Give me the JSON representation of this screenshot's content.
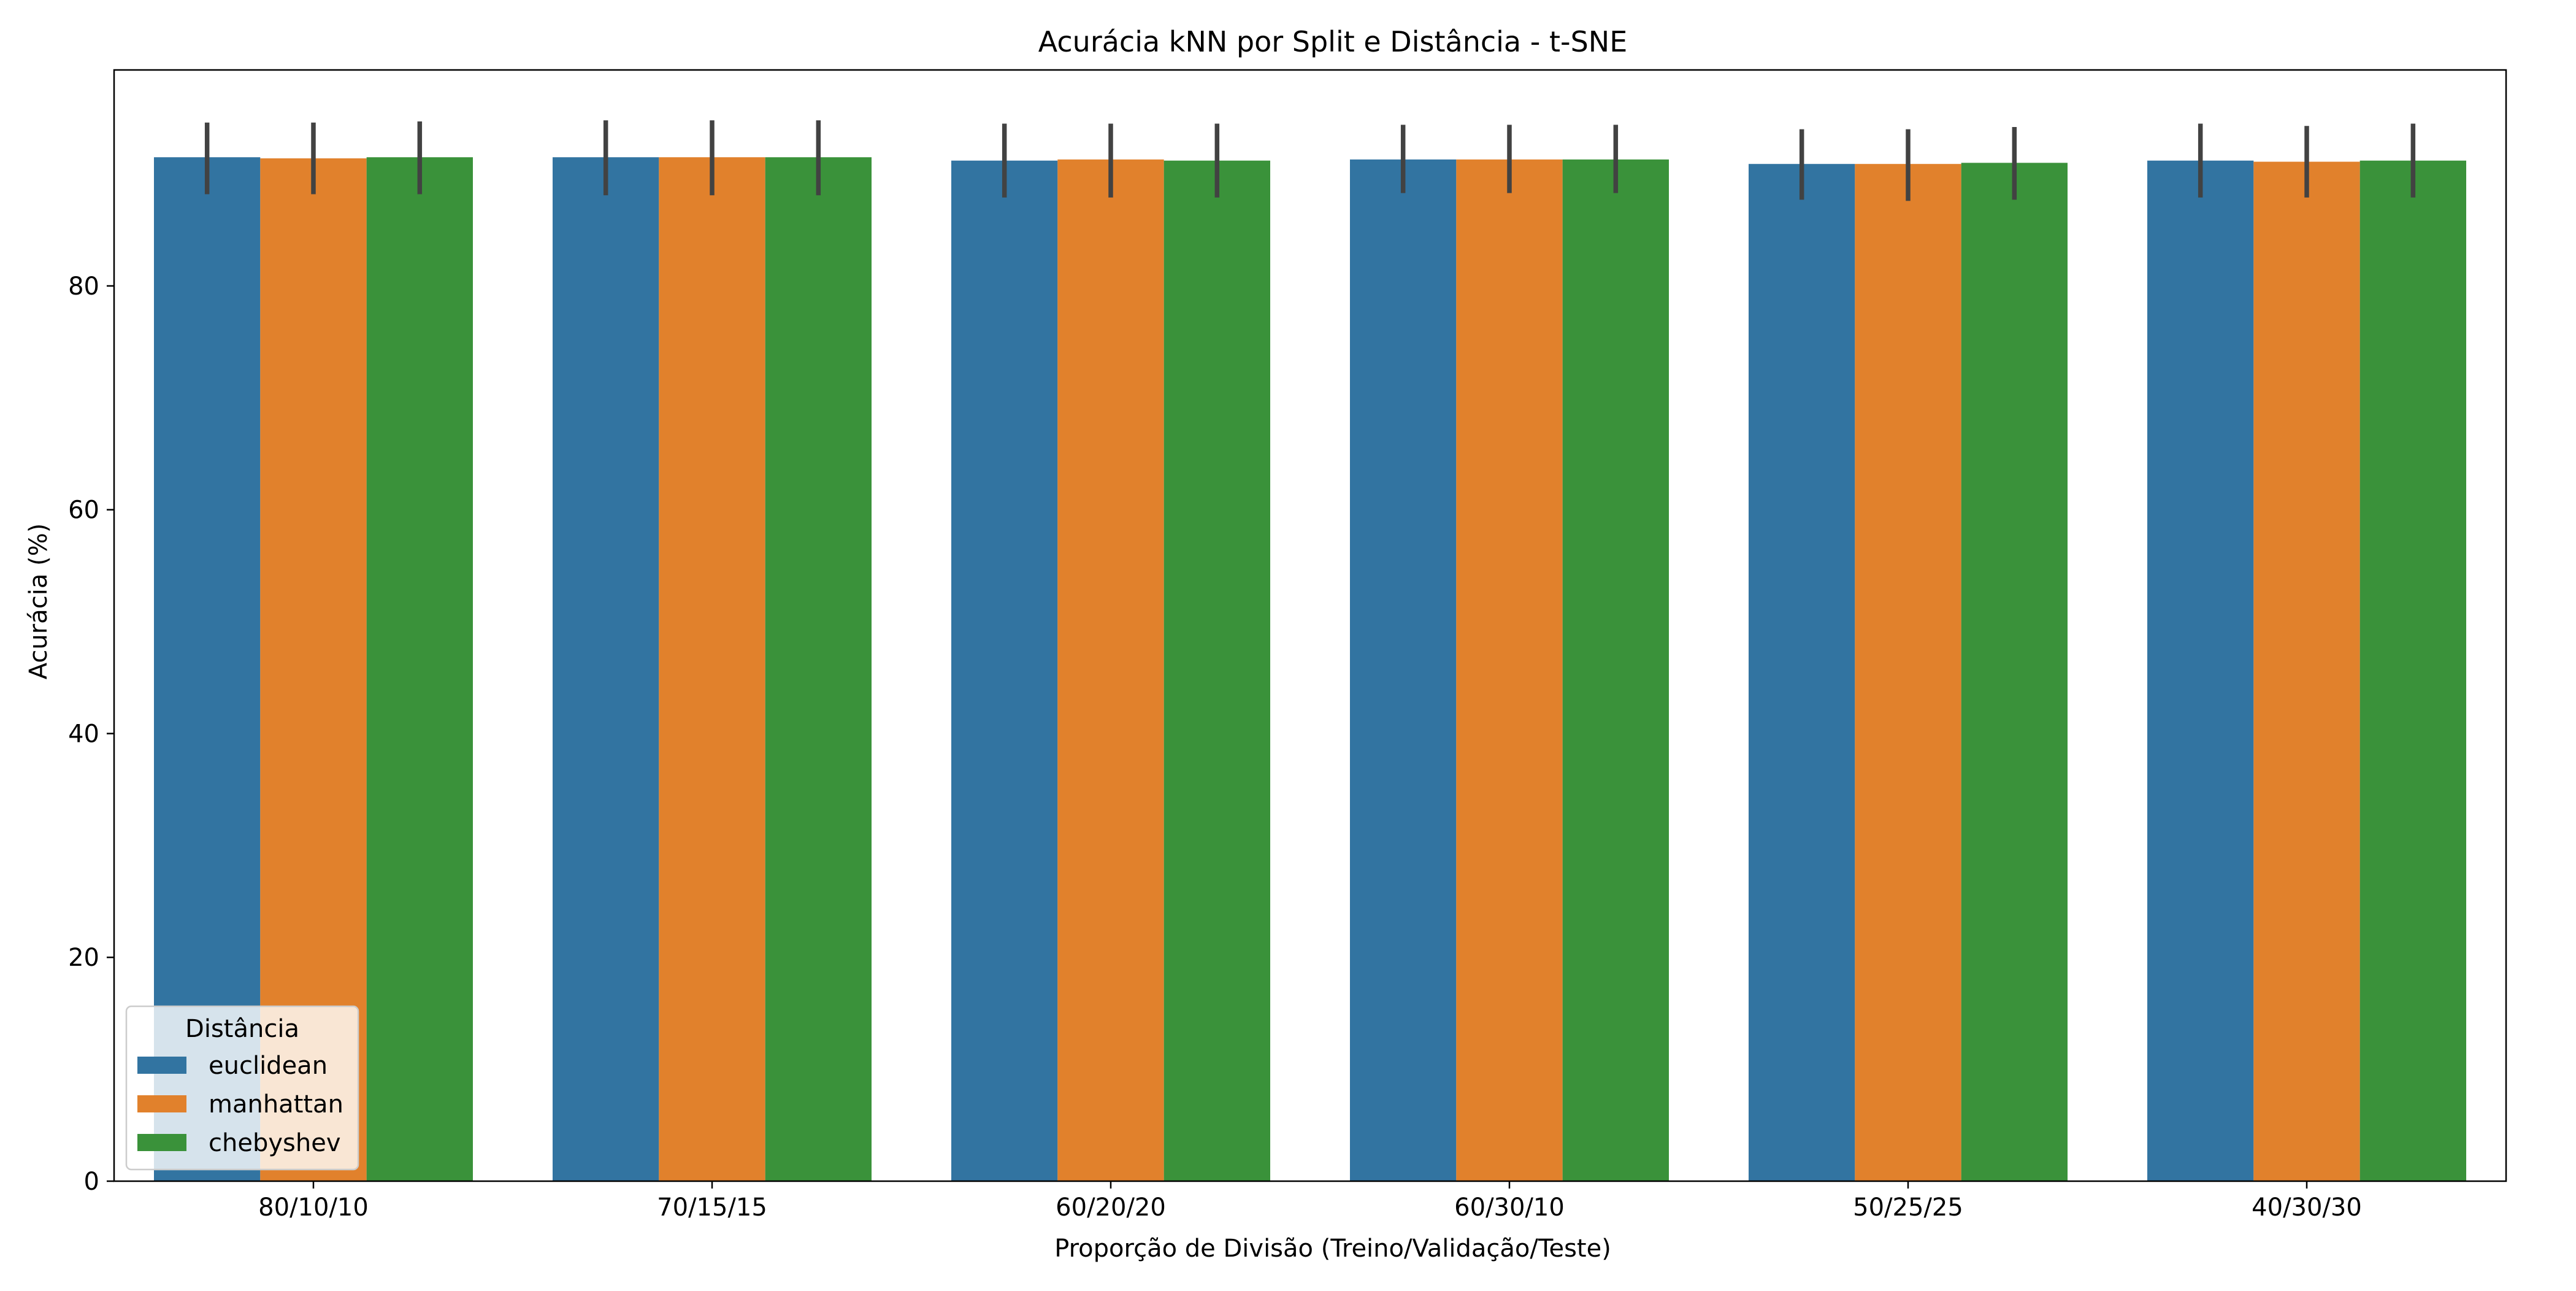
{
  "chart_data": {
    "type": "bar",
    "title": "Acurácia kNN por Split e Distância - t-SNE",
    "xlabel": "Proporção de Divisão (Treino/Validação/Teste)",
    "ylabel": "Acurácia (%)",
    "categories": [
      "80/10/10",
      "70/15/15",
      "60/20/20",
      "60/30/10",
      "50/25/25",
      "40/30/30"
    ],
    "ylim": [
      0,
      99.3
    ],
    "yticks": [
      0,
      20,
      40,
      60,
      80
    ],
    "legend": {
      "title": "Distância",
      "placement": "lower-left"
    },
    "series": [
      {
        "name": "euclidean",
        "color": "#3274a1",
        "values": [
          91.5,
          91.5,
          91.2,
          91.3,
          90.9,
          91.2
        ],
        "err_low": [
          88.2,
          88.1,
          87.9,
          88.3,
          87.7,
          87.9
        ],
        "err_high": [
          94.6,
          94.8,
          94.5,
          94.4,
          94.0,
          94.5
        ]
      },
      {
        "name": "manhattan",
        "color": "#e1812c",
        "values": [
          91.4,
          91.5,
          91.3,
          91.3,
          90.9,
          91.1
        ],
        "err_low": [
          88.2,
          88.1,
          87.9,
          88.3,
          87.6,
          87.9
        ],
        "err_high": [
          94.6,
          94.8,
          94.5,
          94.4,
          94.0,
          94.3
        ]
      },
      {
        "name": "chebyshev",
        "color": "#3a923a",
        "values": [
          91.5,
          91.5,
          91.2,
          91.3,
          91.0,
          91.2
        ],
        "err_low": [
          88.2,
          88.1,
          87.9,
          88.3,
          87.7,
          87.9
        ],
        "err_high": [
          94.7,
          94.8,
          94.5,
          94.4,
          94.2,
          94.5
        ]
      }
    ]
  }
}
